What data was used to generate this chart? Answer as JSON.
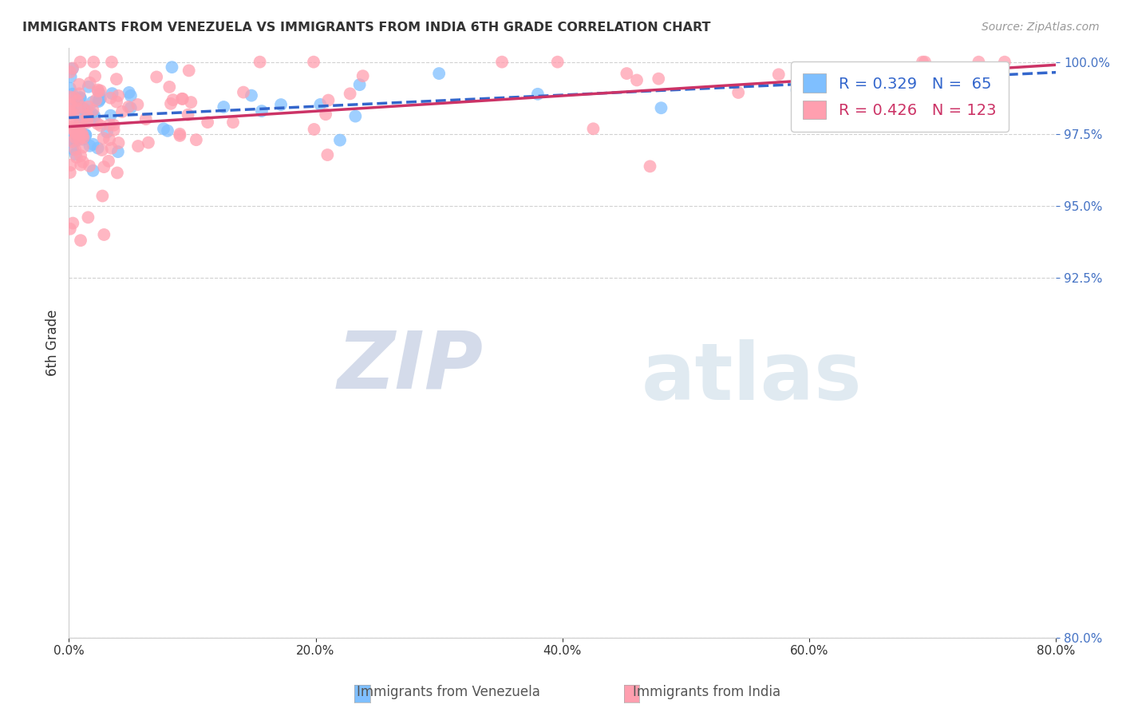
{
  "title": "IMMIGRANTS FROM VENEZUELA VS IMMIGRANTS FROM INDIA 6TH GRADE CORRELATION CHART",
  "source": "Source: ZipAtlas.com",
  "ylabel": "6th Grade",
  "legend_label1": "Immigrants from Venezuela",
  "legend_label2": "Immigrants from India",
  "R1": 0.329,
  "N1": 65,
  "R2": 0.426,
  "N2": 123,
  "xlim": [
    0.0,
    0.8
  ],
  "ylim": [
    0.8,
    1.005
  ],
  "xticks": [
    0.0,
    0.2,
    0.4,
    0.6,
    0.8
  ],
  "xtick_labels": [
    "0.0%",
    "20.0%",
    "40.0%",
    "60.0%",
    "80.0%"
  ],
  "yticks": [
    0.8,
    0.925,
    0.95,
    0.975,
    1.0
  ],
  "ytick_labels": [
    "80.0%",
    "92.5%",
    "95.0%",
    "97.5%",
    "100.0%"
  ],
  "color_venezuela": "#7fbfff",
  "color_india": "#ff9faf",
  "trendline_color_venezuela": "#3366cc",
  "trendline_color_india": "#cc3366",
  "watermark_zip": "ZIP",
  "watermark_atlas": "atlas",
  "background_color": "#ffffff"
}
